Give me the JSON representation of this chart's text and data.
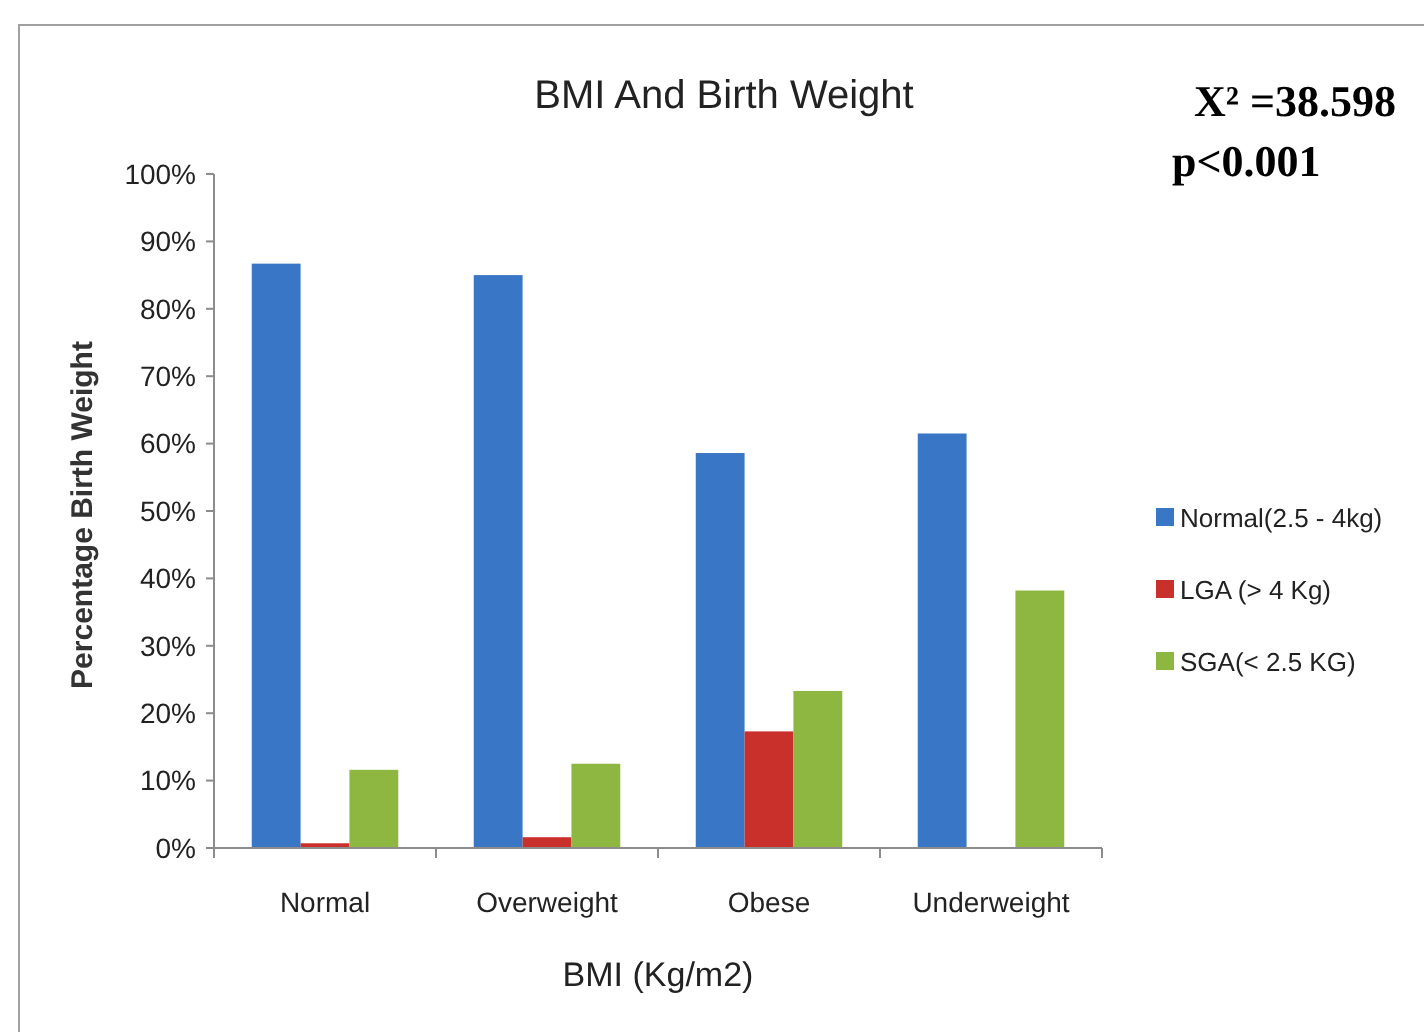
{
  "chart_data": {
    "type": "bar",
    "title": "BMI And Birth Weight",
    "xlabel": "BMI (Kg/m2)",
    "ylabel": "Percentage Birth Weight",
    "categories": [
      "Normal",
      "Overweight",
      "Obese",
      "Underweight"
    ],
    "series": [
      {
        "name": "Normal(2.5 - 4kg)",
        "color": "#3a76c6",
        "values": [
          86.7,
          85.0,
          58.6,
          61.5
        ]
      },
      {
        "name": "LGA (> 4 Kg)",
        "color": "#c9302c",
        "values": [
          0.7,
          1.6,
          17.3,
          0
        ]
      },
      {
        "name": "SGA(< 2.5 KG)",
        "color": "#8db741",
        "values": [
          11.6,
          12.5,
          23.3,
          38.2
        ]
      }
    ],
    "ylim": [
      0,
      100
    ],
    "yticks": [
      {
        "value": 0,
        "label": "0%"
      },
      {
        "value": 10,
        "label": "10%"
      },
      {
        "value": 20,
        "label": "20%"
      },
      {
        "value": 30,
        "label": "30%"
      },
      {
        "value": 40,
        "label": "40%"
      },
      {
        "value": 50,
        "label": "50%"
      },
      {
        "value": 60,
        "label": "60%"
      },
      {
        "value": 70,
        "label": "70%"
      },
      {
        "value": 80,
        "label": "80%"
      },
      {
        "value": 90,
        "label": "90%"
      },
      {
        "value": 100,
        "label": "100%"
      }
    ],
    "legend": "right",
    "annotations": [
      "X² =38.598",
      "p<0.001"
    ]
  }
}
